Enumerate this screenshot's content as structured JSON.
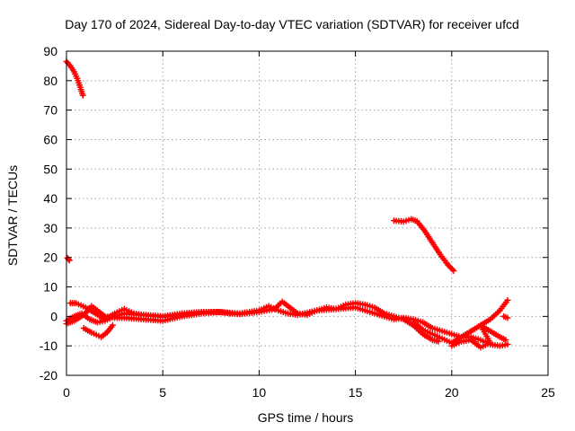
{
  "chart_data": {
    "type": "scatter",
    "title": "Day 170 of 2024, Sidereal Day-to-day VTEC variation (SDTVAR) for receiver ufcd",
    "xlabel": "GPS time / hours",
    "ylabel": "SDTVAR / TECUs",
    "xlim": [
      0,
      25
    ],
    "ylim": [
      -20,
      90
    ],
    "xticks": [
      "0",
      "5",
      "10",
      "15",
      "20",
      "25"
    ],
    "yticks": [
      "-20",
      "-10",
      "0",
      "10",
      "20",
      "30",
      "40",
      "50",
      "60",
      "70",
      "80",
      "90"
    ],
    "grid": true,
    "marker": "+",
    "color": "#ff0000",
    "series": [
      {
        "name": "arc-early-high",
        "points": [
          [
            0.0,
            86.5
          ],
          [
            0.2,
            85
          ],
          [
            0.4,
            83
          ],
          [
            0.6,
            80
          ],
          [
            0.75,
            77
          ],
          [
            0.85,
            75
          ]
        ]
      },
      {
        "name": "arc-early-isolated",
        "points": [
          [
            0.05,
            19.8
          ],
          [
            0.15,
            19.0
          ]
        ]
      },
      {
        "name": "arc-late-high",
        "points": [
          [
            17.0,
            32.5
          ],
          [
            17.5,
            32.2
          ],
          [
            17.9,
            33.0
          ],
          [
            18.2,
            32.3
          ],
          [
            18.6,
            29
          ],
          [
            19.0,
            25
          ],
          [
            19.4,
            21
          ],
          [
            19.8,
            17.5
          ],
          [
            20.1,
            15.5
          ]
        ]
      },
      {
        "name": "arc-main-a",
        "points": [
          [
            0.0,
            -2.5
          ],
          [
            0.4,
            -1.5
          ],
          [
            0.9,
            0.5
          ],
          [
            1.3,
            3.5
          ],
          [
            1.7,
            1.5
          ],
          [
            2.0,
            0
          ],
          [
            2.5,
            -0.5
          ],
          [
            3.0,
            -0.5
          ],
          [
            4.0,
            -1
          ],
          [
            5.0,
            -1.5
          ],
          [
            6.0,
            0
          ],
          [
            7.0,
            1
          ],
          [
            8.0,
            1.5
          ],
          [
            8.5,
            1
          ],
          [
            9.0,
            0.8
          ],
          [
            10.0,
            1.5
          ],
          [
            10.8,
            2.5
          ],
          [
            11.2,
            5
          ],
          [
            11.5,
            3.5
          ],
          [
            12.0,
            1
          ],
          [
            12.5,
            0.5
          ],
          [
            13.0,
            2
          ],
          [
            13.5,
            3
          ],
          [
            14.0,
            2.5
          ],
          [
            14.5,
            4
          ],
          [
            15.0,
            4.5
          ],
          [
            15.5,
            4
          ],
          [
            16.0,
            3
          ],
          [
            16.5,
            1
          ],
          [
            17.0,
            0
          ],
          [
            17.5,
            -1
          ],
          [
            18.0,
            -3
          ],
          [
            18.5,
            -6
          ],
          [
            19.0,
            -8
          ],
          [
            19.3,
            -8.5
          ]
        ]
      },
      {
        "name": "arc-main-b",
        "points": [
          [
            0.2,
            4.5
          ],
          [
            0.5,
            4.5
          ],
          [
            1.0,
            3
          ],
          [
            1.5,
            1
          ],
          [
            2.0,
            -1
          ],
          [
            2.5,
            1
          ],
          [
            3.0,
            2.5
          ],
          [
            3.5,
            1
          ],
          [
            4.0,
            0.5
          ],
          [
            5.0,
            0
          ],
          [
            6.0,
            1
          ],
          [
            7.0,
            1.5
          ],
          [
            7.8,
            1.5
          ],
          [
            9.0,
            1
          ],
          [
            10.0,
            2
          ],
          [
            10.5,
            3.5
          ],
          [
            11.0,
            2
          ],
          [
            11.5,
            1
          ],
          [
            12.0,
            0.5
          ],
          [
            13.0,
            2
          ],
          [
            14.0,
            2.5
          ],
          [
            15.0,
            3
          ],
          [
            15.5,
            2
          ],
          [
            16.0,
            1
          ],
          [
            17.0,
            -1
          ],
          [
            17.5,
            -0.5
          ],
          [
            18.0,
            -1
          ],
          [
            18.5,
            -2
          ],
          [
            19.0,
            -4
          ],
          [
            19.5,
            -5
          ],
          [
            20.0,
            -6
          ],
          [
            20.5,
            -7
          ],
          [
            21.0,
            -7
          ],
          [
            21.5,
            -8
          ],
          [
            22.0,
            -9.5
          ],
          [
            22.5,
            -10
          ],
          [
            22.9,
            -9.5
          ]
        ]
      },
      {
        "name": "arc-main-c",
        "points": [
          [
            0.0,
            -1.5
          ],
          [
            0.4,
            0
          ],
          [
            0.8,
            1
          ],
          [
            1.2,
            -1
          ],
          [
            1.6,
            -2
          ],
          [
            2.0,
            -1.5
          ],
          [
            2.5,
            0
          ],
          [
            3.0,
            1
          ],
          [
            4.0,
            0.5
          ],
          [
            5.0,
            0
          ],
          [
            6.0,
            0.5
          ],
          [
            7.0,
            1.5
          ],
          [
            8.0,
            1.5
          ]
        ]
      },
      {
        "name": "arc-dip-early",
        "points": [
          [
            0.9,
            -4
          ],
          [
            1.3,
            -5.5
          ],
          [
            1.8,
            -7
          ],
          [
            2.1,
            -5.5
          ],
          [
            2.4,
            -3
          ]
        ]
      },
      {
        "name": "arc-late-bowl",
        "points": [
          [
            18.0,
            -2
          ],
          [
            18.5,
            -4.5
          ],
          [
            19.0,
            -6
          ],
          [
            19.5,
            -7.5
          ],
          [
            20.0,
            -9
          ],
          [
            20.5,
            -7
          ],
          [
            21.0,
            -5
          ],
          [
            21.5,
            -3
          ],
          [
            22.0,
            -1
          ],
          [
            22.5,
            2
          ],
          [
            22.9,
            5.5
          ]
        ]
      },
      {
        "name": "arc-late-low",
        "points": [
          [
            20.0,
            -10
          ],
          [
            20.5,
            -8.5
          ],
          [
            21.0,
            -8
          ],
          [
            21.5,
            -10.5
          ],
          [
            22.0,
            -9
          ],
          [
            21.5,
            -3
          ],
          [
            22.0,
            -5
          ],
          [
            22.5,
            -7
          ],
          [
            22.8,
            -8
          ]
        ]
      },
      {
        "name": "arc-late-blip",
        "points": [
          [
            22.7,
            0
          ],
          [
            22.9,
            -0.5
          ]
        ]
      }
    ]
  }
}
